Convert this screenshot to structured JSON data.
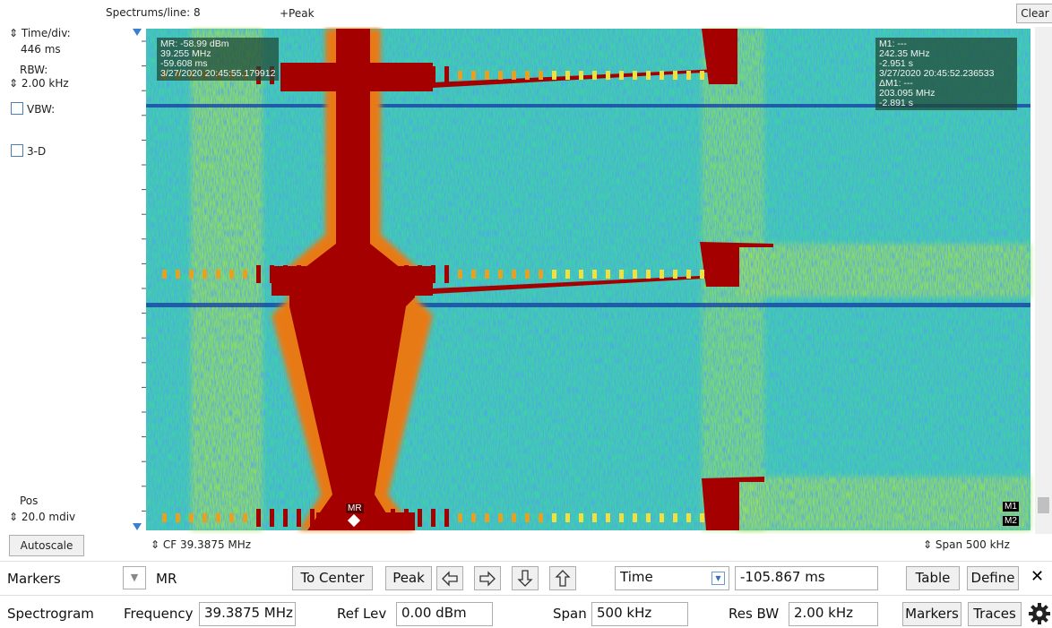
{
  "toolbar": {
    "spectrums_per_line": "Spectrums/line: 8",
    "trace": "+Peak",
    "clear": "Clear"
  },
  "left_panel": {
    "time_div_label": "Time/div:",
    "time_div_value": "446 ms",
    "rbw_label": "RBW:",
    "rbw_value": "2.00 kHz",
    "vbw": "VBW:",
    "three_d": "3-D",
    "pos_label": "Pos",
    "pos_value": "20.0 mdiv",
    "autoscale": "Autoscale"
  },
  "markers": {
    "mr_readout": [
      "MR: -58.99 dBm",
      "39.255 MHz",
      "-59.608 ms",
      "3/27/2020 20:45:55.179912"
    ],
    "m1_readout": [
      "M1: ---",
      "242.35 MHz",
      "-2.951 s",
      "3/27/2020 20:45:52.236533",
      "ΔM1: ---",
      "203.095 MHz",
      "-2.891 s"
    ],
    "mr_label": "MR",
    "m1_label": "M1",
    "m2_label": "M2"
  },
  "axis": {
    "center_freq": "CF 39.3875 MHz",
    "span": "Span 500 kHz"
  },
  "marker_bar": {
    "title": "Markers",
    "marker": "MR",
    "to_center": "To Center",
    "peak": "Peak",
    "readout_type": "Time",
    "readout_value": "-105.867 ms",
    "table": "Table",
    "define": "Define",
    "close": "✕"
  },
  "settings_bar": {
    "title": "Spectrogram",
    "frequency_label": "Frequency",
    "frequency_value": "39.3875 MHz",
    "ref_lev_label": "Ref Lev",
    "ref_lev_value": "0.00 dBm",
    "span_label": "Span",
    "span_value": "500 kHz",
    "res_bw_label": "Res BW",
    "res_bw_value": "2.00 kHz",
    "markers": "Markers",
    "traces": "Traces"
  }
}
